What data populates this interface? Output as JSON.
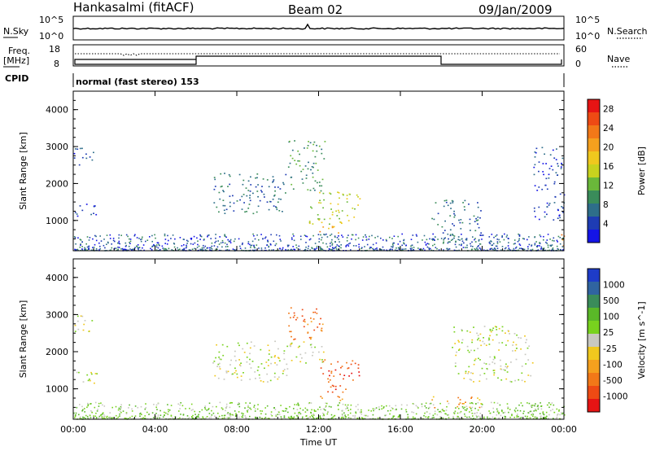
{
  "header": {
    "station": "Hankasalmi (fitACF)",
    "beam": "Beam 02",
    "date": "09/Jan/2009"
  },
  "left_labels": {
    "nsky": "N.Sky",
    "freq": "Freq.",
    "mhz": "[MHz]",
    "cpid": "CPID"
  },
  "right_labels": {
    "nsearch": "N.Search",
    "nave": "Nave"
  },
  "panel1": {
    "left_ticks": [
      "10^5",
      "10^0"
    ],
    "right_ticks": [
      "10^5",
      "10^0"
    ]
  },
  "panel2": {
    "left_ticks": [
      "18",
      "8"
    ],
    "right_ticks": [
      "60",
      "0"
    ]
  },
  "cpid_text": "normal (fast stereo) 153",
  "chart_data": [
    {
      "type": "heatmap",
      "title": "Power",
      "xlabel": "Time UT",
      "ylabel": "Slant Range [km]",
      "x_range_hours": [
        0,
        24
      ],
      "y_range_km": [
        180,
        4500
      ],
      "x_ticks": [
        "00:00",
        "04:00",
        "08:00",
        "12:00",
        "16:00",
        "20:00",
        "00:00"
      ],
      "y_ticks": [
        1000,
        2000,
        3000,
        4000
      ],
      "colorbar": {
        "label": "Power [dB]",
        "ticks": [
          "4",
          "8",
          "12",
          "16",
          "20",
          "24",
          "28"
        ],
        "colors": [
          "#1414e6",
          "#1e3cb4",
          "#2e6e8a",
          "#3a8c5a",
          "#6ab83a",
          "#c8d21e",
          "#f0c81e",
          "#f5a01e",
          "#f27818",
          "#ee4a14",
          "#e61414"
        ]
      },
      "clusters": [
        {
          "t": [
            0.0,
            1.0
          ],
          "r": [
            2500,
            3000
          ],
          "level": 1
        },
        {
          "t": [
            0.0,
            1.2
          ],
          "r": [
            1100,
            1500
          ],
          "level": 1
        },
        {
          "t": [
            6.8,
            10.5
          ],
          "r": [
            1200,
            2300
          ],
          "level": 2
        },
        {
          "t": [
            10.5,
            12.3
          ],
          "r": [
            1800,
            3200
          ],
          "level": 3
        },
        {
          "t": [
            11.5,
            14.0
          ],
          "r": [
            900,
            1800
          ],
          "level": 5
        },
        {
          "t": [
            12.0,
            13.0
          ],
          "r": [
            650,
            950
          ],
          "level": 7
        },
        {
          "t": [
            17.5,
            20.0
          ],
          "r": [
            400,
            1600
          ],
          "level": 2
        },
        {
          "t": [
            22.5,
            24.0
          ],
          "r": [
            1000,
            3000
          ],
          "level": 1
        },
        {
          "t": [
            23.6,
            24.0
          ],
          "r": [
            300,
            700
          ],
          "level": 8
        }
      ]
    },
    {
      "type": "heatmap",
      "title": "Velocity",
      "xlabel": "Time UT",
      "ylabel": "Slant Range [km]",
      "x_range_hours": [
        0,
        24
      ],
      "y_range_km": [
        180,
        4500
      ],
      "x_ticks": [
        "00:00",
        "04:00",
        "08:00",
        "12:00",
        "16:00",
        "20:00",
        "00:00"
      ],
      "y_ticks": [
        1000,
        2000,
        3000,
        4000
      ],
      "colorbar": {
        "label": "Velocity [m s^-1]",
        "ticks": [
          "1000",
          "500",
          "100",
          "25",
          "-25",
          "-100",
          "-500",
          "-1000"
        ],
        "colors": [
          "#1e3cc8",
          "#3064a0",
          "#3a8c5a",
          "#5ab828",
          "#78d21e",
          "#c8c8c0",
          "#f0c81e",
          "#f5a01e",
          "#f27818",
          "#ee4a14",
          "#e61414"
        ]
      },
      "clusters": [
        {
          "t": [
            0.0,
            1.0
          ],
          "r": [
            2500,
            3000
          ],
          "level": 5
        },
        {
          "t": [
            0.0,
            1.2
          ],
          "r": [
            1100,
            1500
          ],
          "level": 5
        },
        {
          "t": [
            6.8,
            10.5
          ],
          "r": [
            1200,
            2300
          ],
          "level": 5
        },
        {
          "t": [
            10.5,
            12.3
          ],
          "r": [
            2300,
            3200
          ],
          "level": 8
        },
        {
          "t": [
            10.5,
            12.3
          ],
          "r": [
            1700,
            2300
          ],
          "level": 5
        },
        {
          "t": [
            12.0,
            14.0
          ],
          "r": [
            1000,
            1800
          ],
          "level": 9
        },
        {
          "t": [
            12.0,
            13.2
          ],
          "r": [
            650,
            950
          ],
          "level": 8
        },
        {
          "t": [
            17.5,
            20.0
          ],
          "r": [
            500,
            800
          ],
          "level": 7
        },
        {
          "t": [
            18.5,
            22.5
          ],
          "r": [
            1200,
            2700
          ],
          "level": 5
        },
        {
          "t": [
            22.5,
            24.0
          ],
          "r": [
            300,
            600
          ],
          "level": 4
        }
      ]
    }
  ]
}
